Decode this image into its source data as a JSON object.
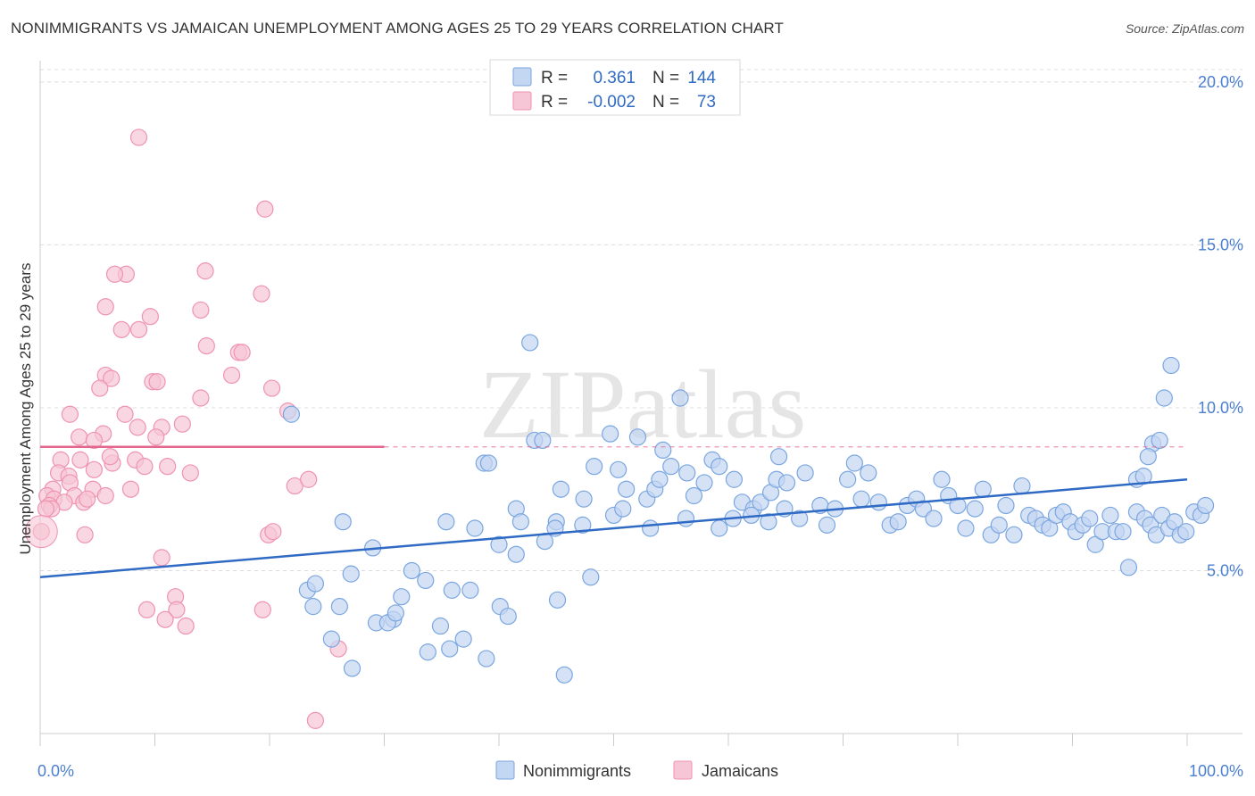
{
  "title": "NONIMMIGRANTS VS JAMAICAN UNEMPLOYMENT AMONG AGES 25 TO 29 YEARS CORRELATION CHART",
  "source": "Source: ZipAtlas.com",
  "watermark": "ZIPatlas",
  "chart_data": {
    "type": "scatter",
    "title": "NONIMMIGRANTS VS JAMAICAN UNEMPLOYMENT AMONG AGES 25 TO 29 YEARS CORRELATION CHART",
    "xlabel": "",
    "ylabel": "Unemployment Among Ages 25 to 29 years",
    "xlim": [
      0,
      100
    ],
    "ylim": [
      0,
      20.6
    ],
    "x_ticks": [
      "0.0%",
      "100.0%"
    ],
    "y_ticks": [
      {
        "value": 5,
        "label": "5.0%"
      },
      {
        "value": 10,
        "label": "10.0%"
      },
      {
        "value": 15,
        "label": "15.0%"
      },
      {
        "value": 20,
        "label": "20.0%"
      }
    ],
    "legend": {
      "position": "top-center",
      "rows": [
        {
          "r_label": "R =",
          "r_value": "0.361",
          "n_label": "N =",
          "n_value": "144"
        },
        {
          "r_label": "R =",
          "r_value": "-0.002",
          "n_label": "N =",
          "n_value": "73"
        }
      ]
    },
    "series": [
      {
        "name": "Nonimmigrants",
        "color": "#7aa6e0",
        "fill": "#c3d6f2",
        "line_color": "#2f6ac4",
        "trend": {
          "x": [
            0,
            100
          ],
          "y": [
            4.8,
            7.8
          ],
          "dashed_from": null
        },
        "points": [
          [
            21.9,
            9.8
          ],
          [
            42.7,
            12.0
          ],
          [
            55.8,
            10.3
          ],
          [
            98.6,
            11.3
          ],
          [
            98.0,
            10.3
          ],
          [
            38.7,
            8.3
          ],
          [
            39.1,
            8.3
          ],
          [
            43.1,
            9.0
          ],
          [
            43.8,
            9.0
          ],
          [
            49.7,
            9.2
          ],
          [
            52.1,
            9.1
          ],
          [
            54.3,
            8.7
          ],
          [
            58.6,
            8.4
          ],
          [
            64.4,
            8.5
          ],
          [
            97.0,
            8.9
          ],
          [
            97.6,
            9.0
          ],
          [
            96.6,
            8.5
          ],
          [
            95.6,
            7.8
          ],
          [
            96.2,
            7.9
          ],
          [
            45.4,
            7.5
          ],
          [
            47.4,
            7.2
          ],
          [
            48.3,
            8.2
          ],
          [
            50.4,
            8.1
          ],
          [
            51.1,
            7.5
          ],
          [
            52.9,
            7.2
          ],
          [
            53.6,
            7.5
          ],
          [
            54.0,
            7.8
          ],
          [
            55.0,
            8.2
          ],
          [
            56.4,
            8.0
          ],
          [
            57.0,
            7.3
          ],
          [
            57.9,
            7.7
          ],
          [
            59.2,
            8.2
          ],
          [
            60.5,
            7.8
          ],
          [
            61.2,
            7.1
          ],
          [
            62.2,
            6.9
          ],
          [
            62.8,
            7.1
          ],
          [
            63.7,
            7.4
          ],
          [
            64.2,
            7.8
          ],
          [
            65.1,
            7.7
          ],
          [
            66.2,
            6.6
          ],
          [
            66.7,
            8.0
          ],
          [
            68.0,
            7.0
          ],
          [
            68.6,
            6.4
          ],
          [
            69.3,
            6.9
          ],
          [
            70.4,
            7.8
          ],
          [
            71.0,
            8.3
          ],
          [
            71.6,
            7.2
          ],
          [
            72.2,
            8.0
          ],
          [
            73.1,
            7.1
          ],
          [
            74.1,
            6.4
          ],
          [
            74.8,
            6.5
          ],
          [
            75.6,
            7.0
          ],
          [
            76.4,
            7.2
          ],
          [
            77.0,
            6.9
          ],
          [
            77.9,
            6.6
          ],
          [
            78.6,
            7.8
          ],
          [
            79.2,
            7.3
          ],
          [
            80.0,
            7.0
          ],
          [
            80.7,
            6.3
          ],
          [
            81.5,
            6.9
          ],
          [
            82.2,
            7.5
          ],
          [
            82.9,
            6.1
          ],
          [
            83.6,
            6.4
          ],
          [
            84.2,
            7.0
          ],
          [
            84.9,
            6.1
          ],
          [
            85.6,
            7.6
          ],
          [
            86.2,
            6.7
          ],
          [
            86.8,
            6.6
          ],
          [
            87.4,
            6.4
          ],
          [
            88.0,
            6.3
          ],
          [
            88.6,
            6.7
          ],
          [
            89.2,
            6.8
          ],
          [
            89.8,
            6.5
          ],
          [
            90.3,
            6.2
          ],
          [
            90.9,
            6.4
          ],
          [
            91.5,
            6.6
          ],
          [
            92.0,
            5.8
          ],
          [
            92.6,
            6.2
          ],
          [
            93.3,
            6.7
          ],
          [
            93.8,
            6.2
          ],
          [
            94.4,
            6.2
          ],
          [
            94.9,
            5.1
          ],
          [
            95.6,
            6.8
          ],
          [
            96.3,
            6.6
          ],
          [
            96.8,
            6.4
          ],
          [
            97.3,
            6.1
          ],
          [
            97.8,
            6.7
          ],
          [
            98.4,
            6.3
          ],
          [
            98.9,
            6.5
          ],
          [
            99.4,
            6.1
          ],
          [
            99.9,
            6.2
          ],
          [
            100.6,
            6.8
          ],
          [
            101.2,
            6.7
          ],
          [
            101.6,
            7.0
          ],
          [
            37.9,
            6.3
          ],
          [
            41.5,
            6.9
          ],
          [
            41.9,
            6.5
          ],
          [
            45.0,
            6.5
          ],
          [
            47.3,
            6.4
          ],
          [
            50.0,
            6.7
          ],
          [
            50.8,
            6.9
          ],
          [
            53.2,
            6.3
          ],
          [
            56.3,
            6.6
          ],
          [
            59.2,
            6.3
          ],
          [
            60.4,
            6.6
          ],
          [
            62.0,
            6.7
          ],
          [
            63.5,
            6.5
          ],
          [
            64.9,
            6.9
          ],
          [
            26.4,
            6.5
          ],
          [
            29.0,
            5.7
          ],
          [
            35.4,
            6.5
          ],
          [
            40.0,
            5.8
          ],
          [
            41.5,
            5.5
          ],
          [
            44.0,
            5.9
          ],
          [
            44.9,
            6.3
          ],
          [
            32.4,
            5.0
          ],
          [
            48.0,
            4.8
          ],
          [
            27.1,
            4.9
          ],
          [
            23.3,
            4.4
          ],
          [
            23.8,
            3.9
          ],
          [
            24.0,
            4.6
          ],
          [
            26.1,
            3.9
          ],
          [
            29.3,
            3.4
          ],
          [
            31.5,
            4.2
          ],
          [
            30.8,
            3.5
          ],
          [
            33.6,
            4.7
          ],
          [
            35.9,
            4.4
          ],
          [
            37.5,
            4.4
          ],
          [
            40.1,
            3.9
          ],
          [
            40.8,
            3.6
          ],
          [
            25.4,
            2.9
          ],
          [
            27.2,
            2.0
          ],
          [
            30.3,
            3.4
          ],
          [
            31.0,
            3.7
          ],
          [
            33.8,
            2.5
          ],
          [
            34.9,
            3.3
          ],
          [
            36.9,
            2.9
          ],
          [
            35.7,
            2.6
          ],
          [
            38.9,
            2.3
          ],
          [
            45.7,
            1.8
          ],
          [
            45.1,
            4.1
          ]
        ]
      },
      {
        "name": "Jamaicans",
        "color": "#ef93b0",
        "fill": "#f7c6d6",
        "line_color": "#e3668e",
        "trend": {
          "x": [
            0,
            30
          ],
          "y": [
            8.8,
            8.8
          ],
          "dashed_from": 30
        },
        "points": [
          [
            8.6,
            18.3
          ],
          [
            19.6,
            16.1
          ],
          [
            14.4,
            14.2
          ],
          [
            7.5,
            14.1
          ],
          [
            6.5,
            14.1
          ],
          [
            19.3,
            13.5
          ],
          [
            5.7,
            13.1
          ],
          [
            14.0,
            13.0
          ],
          [
            9.6,
            12.8
          ],
          [
            7.1,
            12.4
          ],
          [
            8.6,
            12.4
          ],
          [
            14.5,
            11.9
          ],
          [
            17.3,
            11.7
          ],
          [
            17.6,
            11.7
          ],
          [
            16.7,
            11.0
          ],
          [
            5.7,
            11.0
          ],
          [
            6.2,
            10.9
          ],
          [
            5.2,
            10.6
          ],
          [
            9.8,
            10.8
          ],
          [
            10.2,
            10.8
          ],
          [
            20.2,
            10.6
          ],
          [
            14.0,
            10.3
          ],
          [
            2.6,
            9.8
          ],
          [
            7.4,
            9.8
          ],
          [
            21.6,
            9.9
          ],
          [
            12.4,
            9.5
          ],
          [
            8.5,
            9.4
          ],
          [
            10.6,
            9.4
          ],
          [
            3.4,
            9.1
          ],
          [
            5.5,
            9.2
          ],
          [
            10.1,
            9.1
          ],
          [
            4.7,
            9.0
          ],
          [
            1.8,
            8.4
          ],
          [
            3.5,
            8.4
          ],
          [
            6.3,
            8.3
          ],
          [
            8.3,
            8.4
          ],
          [
            9.1,
            8.2
          ],
          [
            11.1,
            8.2
          ],
          [
            4.7,
            8.1
          ],
          [
            1.6,
            8.0
          ],
          [
            6.1,
            8.5
          ],
          [
            13.1,
            8.0
          ],
          [
            2.5,
            7.9
          ],
          [
            2.6,
            7.7
          ],
          [
            1.1,
            7.5
          ],
          [
            4.6,
            7.5
          ],
          [
            3.0,
            7.3
          ],
          [
            5.7,
            7.3
          ],
          [
            7.9,
            7.5
          ],
          [
            22.2,
            7.6
          ],
          [
            23.4,
            7.8
          ],
          [
            3.8,
            7.1
          ],
          [
            0.6,
            7.3
          ],
          [
            1.2,
            7.2
          ],
          [
            2.1,
            7.1
          ],
          [
            4.1,
            7.2
          ],
          [
            0.8,
            7.0
          ],
          [
            1.0,
            6.9
          ],
          [
            0.5,
            6.9
          ],
          [
            0.1,
            6.2
          ],
          [
            3.9,
            6.1
          ],
          [
            19.9,
            6.1
          ],
          [
            20.3,
            6.2
          ],
          [
            10.6,
            5.4
          ],
          [
            11.8,
            4.2
          ],
          [
            9.3,
            3.8
          ],
          [
            11.9,
            3.8
          ],
          [
            19.4,
            3.8
          ],
          [
            12.7,
            3.3
          ],
          [
            10.9,
            3.5
          ],
          [
            26.0,
            2.6
          ],
          [
            24.0,
            0.4
          ]
        ]
      }
    ]
  },
  "bottom_legend": [
    "Nonimmigrants",
    "Jamaicans"
  ]
}
